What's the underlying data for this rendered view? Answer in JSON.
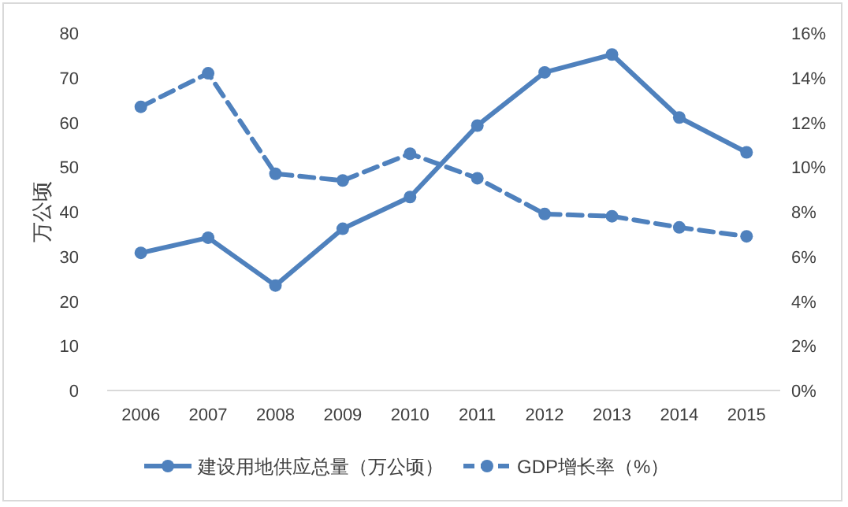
{
  "chart_data": {
    "type": "line",
    "ylabel": "万公顷",
    "categories": [
      "2006",
      "2007",
      "2008",
      "2009",
      "2010",
      "2011",
      "2012",
      "2013",
      "2014",
      "2015"
    ],
    "series": [
      {
        "name": "建设用地供应总量（万公顷）",
        "color": "#4f81bd",
        "line_style": "solid",
        "values": [
          30.8,
          34.2,
          23.5,
          36.2,
          43.3,
          59.3,
          71.2,
          75.2,
          61.1,
          53.3
        ]
      },
      {
        "name": "GDP增长率（%）",
        "color": "#4f81bd",
        "line_style": "dashed",
        "axis": "y2",
        "values": [
          12.7,
          14.2,
          9.7,
          9.4,
          10.6,
          9.5,
          7.9,
          7.8,
          7.3,
          6.9
        ]
      }
    ],
    "ylim": [
      0,
      80
    ],
    "yticks": [
      0,
      10,
      20,
      30,
      40,
      50,
      60,
      70,
      80
    ],
    "y2lim": [
      0,
      16
    ],
    "y2ticks": [
      {
        "value": 0,
        "label": "0%"
      },
      {
        "value": 2,
        "label": "2%"
      },
      {
        "value": 4,
        "label": "4%"
      },
      {
        "value": 6,
        "label": "6%"
      },
      {
        "value": 8,
        "label": "8%"
      },
      {
        "value": 10,
        "label": "10%"
      },
      {
        "value": 12,
        "label": "12%"
      },
      {
        "value": 14,
        "label": "14%"
      },
      {
        "value": 16,
        "label": "16%"
      }
    ],
    "marker": "circle",
    "legend": "bottom",
    "grid": false
  }
}
